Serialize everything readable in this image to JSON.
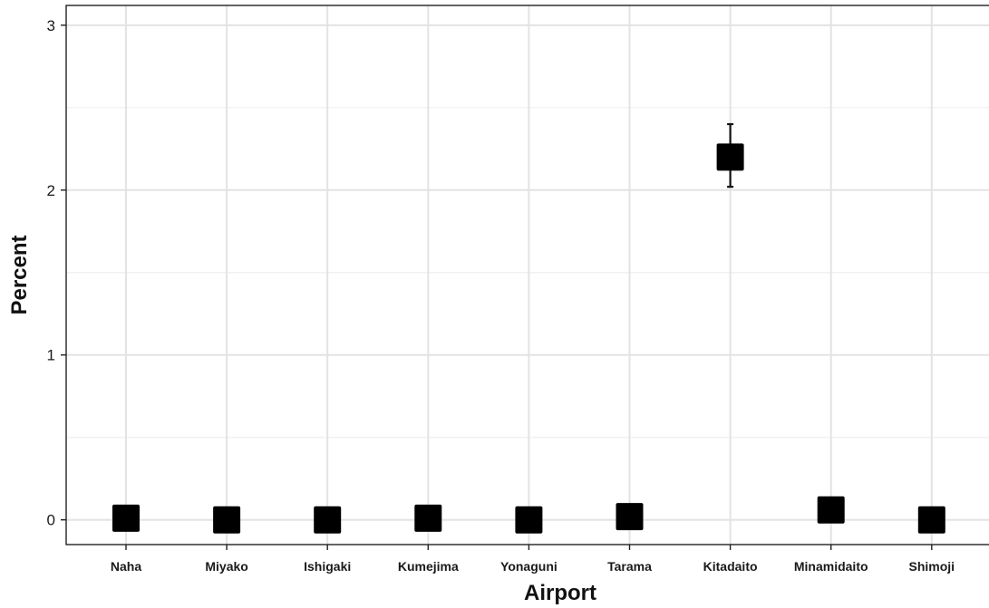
{
  "chart_data": {
    "type": "scatter",
    "title": "",
    "xlabel": "Airport",
    "ylabel": "Percent",
    "categories": [
      "Naha",
      "Miyako",
      "Ishigaki",
      "Kumejima",
      "Yonaguni",
      "Tarama",
      "Kitadaito",
      "Minamidaito",
      "Shimoji"
    ],
    "values": [
      0.01,
      0.0,
      0.0,
      0.01,
      0.0,
      0.02,
      2.2,
      0.06,
      0.0
    ],
    "error_bars": [
      {
        "category": "Kitadaito",
        "low": 2.02,
        "high": 2.4
      }
    ],
    "yticks": [
      0,
      1,
      2,
      3
    ],
    "ylim": [
      -0.15,
      3.12
    ],
    "marker": "square",
    "marker_color": "#000000",
    "grid": true,
    "legend": "none"
  }
}
